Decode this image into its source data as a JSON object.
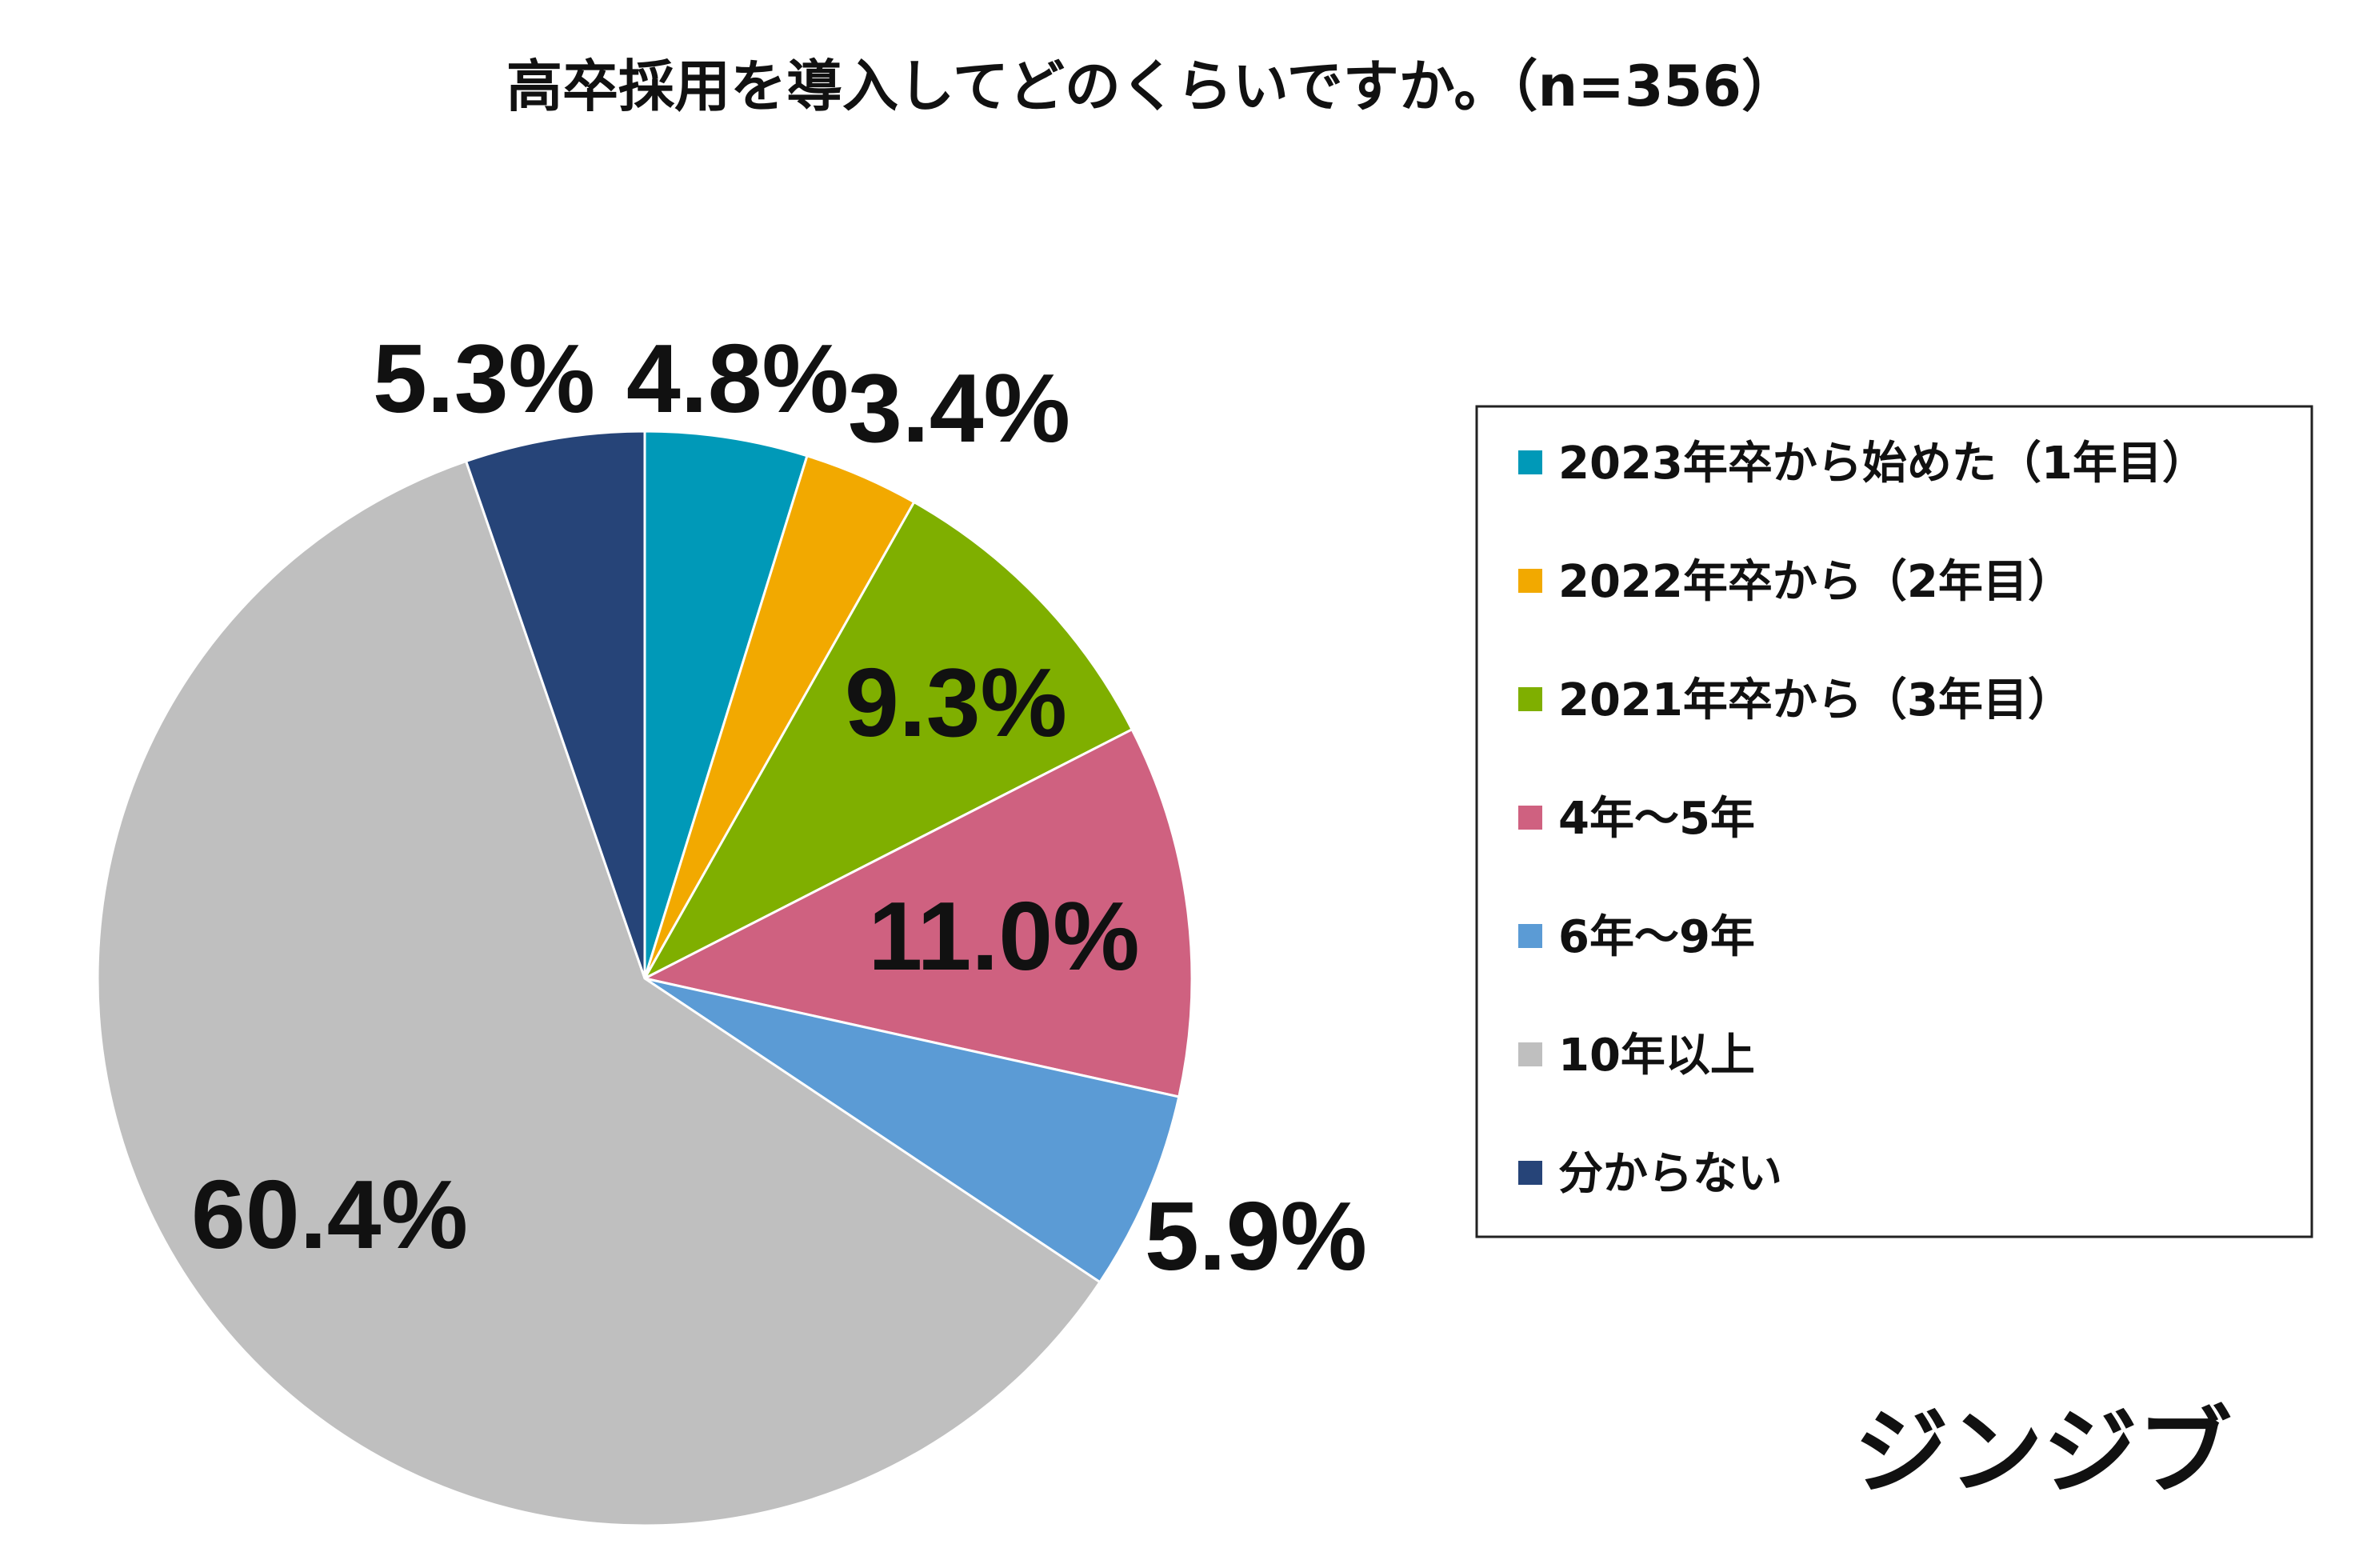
{
  "chart_data": {
    "type": "pie",
    "title": "高卒採用を導入してどのくらいですか。（n=356）",
    "start_angle_deg": 0,
    "direction": "clockwise",
    "slices": [
      {
        "label": "2023年卒から始めた（1年目）",
        "value": 4.8,
        "value_label": "4.8%",
        "color": "#0099B8"
      },
      {
        "label": "2022年卒から（2年目）",
        "value": 3.4,
        "value_label": "3.4%",
        "color": "#F2A900"
      },
      {
        "label": "2021年卒から（3年目）",
        "value": 9.3,
        "value_label": "9.3%",
        "color": "#7FAF00"
      },
      {
        "label": "4年～5年",
        "value": 11.0,
        "value_label": "11.0%",
        "color": "#CF6180"
      },
      {
        "label": "6年～9年",
        "value": 5.9,
        "value_label": "5.9%",
        "color": "#5B9BD5"
      },
      {
        "label": "10年以上",
        "value": 60.4,
        "value_label": "60.4%",
        "color": "#BFBFBF"
      },
      {
        "label": "分からない",
        "value": 5.3,
        "value_label": "5.3%",
        "color": "#264478"
      }
    ],
    "legend_position": "right"
  },
  "brand": {
    "logo_text": "ジンジブ"
  }
}
